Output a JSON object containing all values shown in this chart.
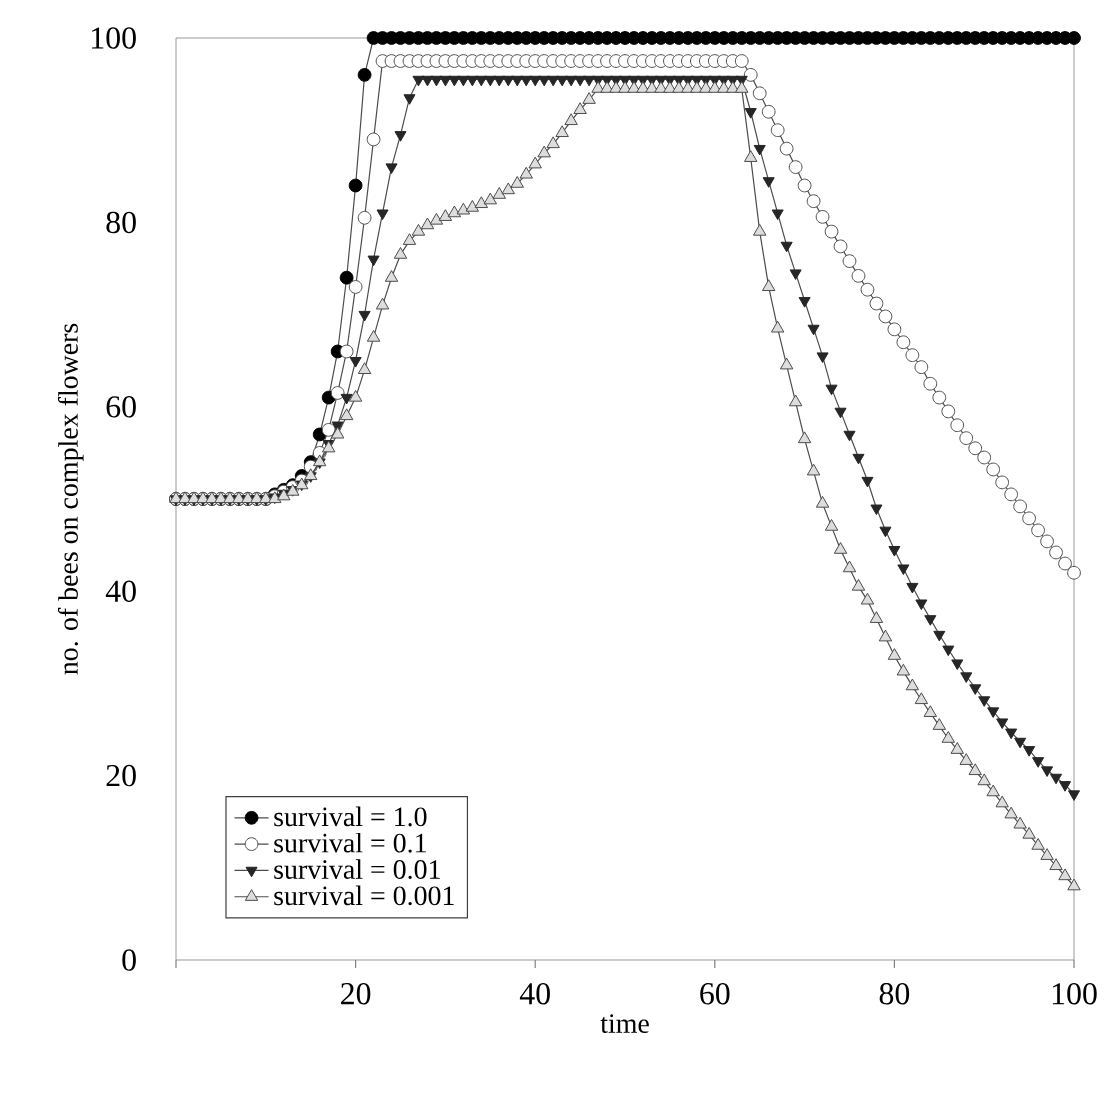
{
  "chart_data": {
    "type": "line",
    "xlabel": "time",
    "ylabel": "no. of bees on complex flowers",
    "xlim": [
      0,
      100
    ],
    "ylim": [
      0,
      100
    ],
    "xticks": [
      {
        "value": 0,
        "label": null
      },
      20,
      40,
      60,
      80,
      100
    ],
    "yticks": [
      0,
      20,
      40,
      60,
      80,
      100
    ],
    "grid": false,
    "legend": "bottom left",
    "line_style": "solid",
    "x": [
      0,
      1,
      2,
      3,
      4,
      5,
      6,
      7,
      8,
      9,
      10,
      11,
      12,
      13,
      14,
      15,
      16,
      17,
      18,
      19,
      20,
      21,
      22,
      23,
      24,
      25,
      26,
      27,
      28,
      29,
      30,
      31,
      32,
      33,
      34,
      35,
      36,
      37,
      38,
      39,
      40,
      41,
      42,
      43,
      44,
      45,
      46,
      47,
      48,
      49,
      50,
      51,
      52,
      53,
      54,
      55,
      56,
      57,
      58,
      59,
      60,
      61,
      62,
      63,
      64,
      65,
      66,
      67,
      68,
      69,
      70,
      71,
      72,
      73,
      74,
      75,
      76,
      77,
      78,
      79,
      80,
      81,
      82,
      83,
      84,
      85,
      86,
      87,
      88,
      89,
      90,
      91,
      92,
      93,
      94,
      95,
      96,
      97,
      98,
      99,
      100
    ],
    "series": [
      {
        "name": "survival = 1.0",
        "color": "#000000",
        "marker": "circle",
        "values": [
          50,
          50,
          50,
          50,
          50,
          50,
          50,
          50,
          50,
          50,
          50,
          50.5,
          51,
          51.5,
          52.5,
          54,
          57,
          61,
          66,
          74,
          84,
          96,
          100,
          100,
          100,
          100,
          100,
          100,
          100,
          100,
          100,
          100,
          100,
          100,
          100,
          100,
          100,
          100,
          100,
          100,
          100,
          100,
          100,
          100,
          100,
          100,
          100,
          100,
          100,
          100,
          100,
          100,
          100,
          100,
          100,
          100,
          100,
          100,
          100,
          100,
          100,
          100,
          100,
          100,
          100,
          100,
          100,
          100,
          100,
          100,
          100,
          100,
          100,
          100,
          100,
          100,
          100,
          100,
          100,
          100,
          100,
          100,
          100,
          100,
          100,
          100,
          100,
          100,
          100,
          100,
          100,
          100,
          100,
          100,
          100,
          100,
          100,
          100,
          100,
          100,
          100
        ]
      },
      {
        "name": "survival = 0.1",
        "color": "#ffffff",
        "marker": "circle",
        "values": [
          50,
          50,
          50,
          50,
          50,
          50,
          50,
          50,
          50,
          50,
          50,
          50.3,
          50.8,
          51.3,
          52,
          53.5,
          55,
          57.5,
          61.5,
          66,
          73,
          80.5,
          89,
          97.5,
          97.5,
          97.5,
          97.5,
          97.5,
          97.5,
          97.5,
          97.5,
          97.5,
          97.5,
          97.5,
          97.5,
          97.5,
          97.5,
          97.5,
          97.5,
          97.5,
          97.5,
          97.5,
          97.5,
          97.5,
          97.5,
          97.5,
          97.5,
          97.5,
          97.5,
          97.5,
          97.5,
          97.5,
          97.5,
          97.5,
          97.5,
          97.5,
          97.5,
          97.5,
          97.5,
          97.5,
          97.5,
          97.5,
          97.5,
          97.5,
          96,
          94,
          92,
          90,
          88,
          86,
          84,
          82.3,
          80.6,
          79,
          77.4,
          75.8,
          74.2,
          72.7,
          71.2,
          69.8,
          68.4,
          67,
          65.6,
          64.3,
          62.5,
          61,
          59.5,
          58,
          56.6,
          55.5,
          54.5,
          53.2,
          51.8,
          50.5,
          49.2,
          47.9,
          46.6,
          45.4,
          44.2,
          43,
          42
        ]
      },
      {
        "name": "survival = 0.01",
        "color": "#262626",
        "marker": "triangle",
        "values": [
          50,
          50,
          50,
          50,
          50,
          50,
          50,
          50,
          50,
          50,
          50,
          50.2,
          50.6,
          51,
          51.6,
          52.5,
          54,
          56,
          58,
          61,
          65,
          70,
          76,
          81,
          86,
          89.5,
          93.5,
          95.5,
          95.5,
          95.5,
          95.5,
          95.5,
          95.5,
          95.5,
          95.5,
          95.5,
          95.5,
          95.5,
          95.5,
          95.5,
          95.5,
          95.5,
          95.5,
          95.5,
          95.5,
          95.5,
          95.5,
          95.5,
          95.5,
          95.5,
          95.5,
          95.5,
          95.5,
          95.5,
          95.5,
          95.5,
          95.5,
          95.5,
          95.5,
          95.5,
          95.5,
          95.5,
          95.5,
          95.5,
          92,
          88,
          84.5,
          81,
          77.5,
          74.5,
          71.5,
          68.5,
          65.5,
          62,
          59.5,
          57,
          54.5,
          52,
          49,
          46.6,
          44.5,
          42.5,
          40.5,
          38.7,
          37,
          35.3,
          33.7,
          32.2,
          30.8,
          29.5,
          28.2,
          27,
          25.8,
          24.7,
          23.7,
          22.8,
          21.6,
          20.6,
          19.8,
          19,
          18
        ]
      },
      {
        "name": "survival = 0.001",
        "color": "#dddddd",
        "marker": "triangle",
        "values": [
          50,
          50,
          50,
          50,
          50,
          50,
          50,
          50,
          50,
          50,
          50,
          50,
          50.3,
          50.8,
          51.5,
          52.5,
          54,
          55.5,
          57,
          59,
          61,
          64,
          67.5,
          71,
          74,
          76.5,
          78,
          79,
          79.7,
          80.2,
          80.6,
          81,
          81.3,
          81.6,
          82,
          82.4,
          83,
          83.5,
          84.2,
          85.2,
          86.3,
          87.5,
          88.5,
          89.7,
          91,
          92.2,
          93.3,
          94.5,
          94.5,
          94.5,
          94.5,
          94.5,
          94.5,
          94.5,
          94.5,
          94.5,
          94.5,
          94.5,
          94.5,
          94.5,
          94.5,
          94.5,
          94.5,
          94.5,
          87,
          79,
          73,
          68.5,
          64.5,
          60.5,
          56.5,
          53,
          49.5,
          47,
          44.5,
          42.5,
          40.5,
          39,
          37,
          35,
          33,
          31.3,
          29.7,
          28.2,
          26.8,
          25.4,
          24,
          22.8,
          21.6,
          20.5,
          19.4,
          18.2,
          17,
          15.8,
          14.7,
          13.6,
          12.4,
          11.3,
          10.2,
          9.1,
          8
        ]
      }
    ]
  }
}
